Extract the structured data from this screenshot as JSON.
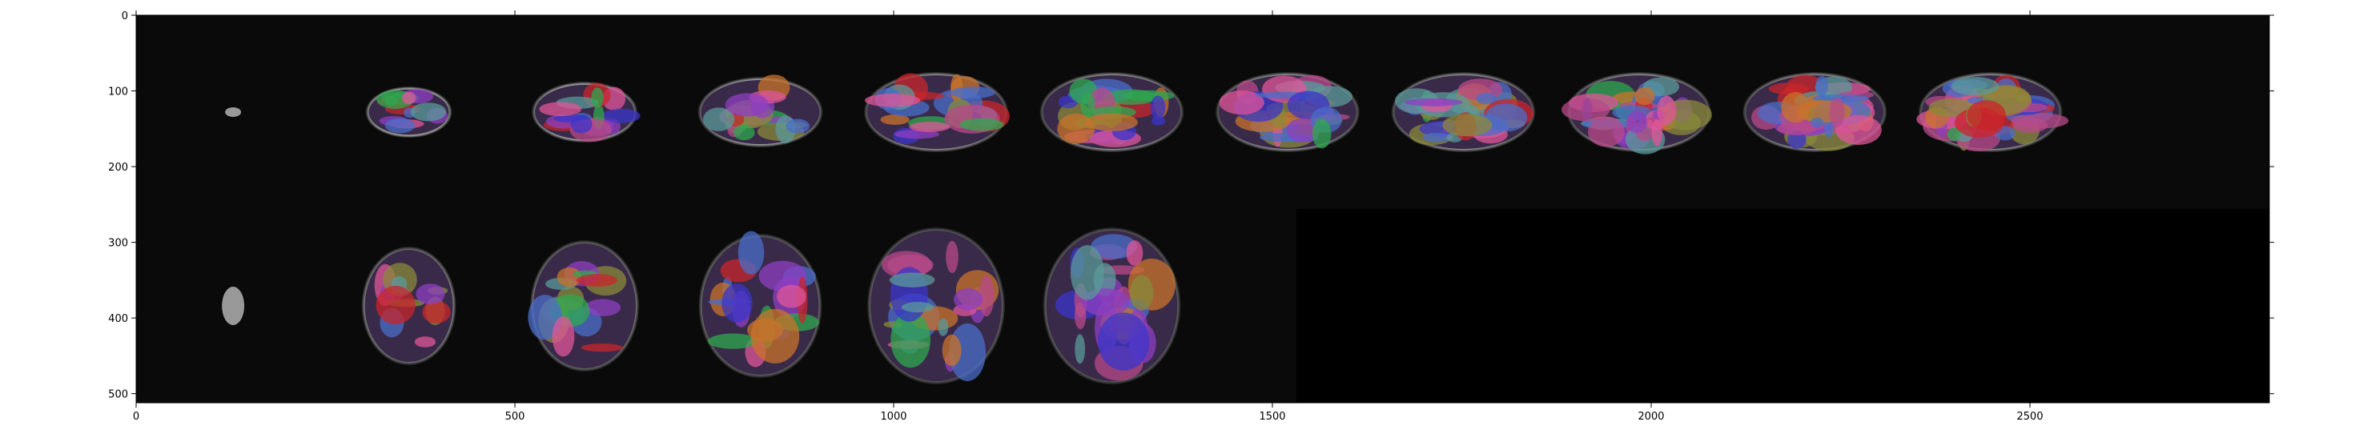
{
  "chart_data": {
    "type": "heatmap",
    "title": "",
    "xlabel": "",
    "ylabel": "",
    "xlim": [
      0,
      2816
    ],
    "ylim": [
      512,
      0
    ],
    "x_ticks": [
      0,
      500,
      1000,
      1500,
      2000,
      2500
    ],
    "y_ticks": [
      0,
      100,
      200,
      300,
      400,
      500
    ],
    "grid": false,
    "legend": "none",
    "tile_size": 256,
    "rows": [
      {
        "name": "",
        "view": "axial",
        "tiles": 11
      },
      {
        "name": "",
        "view": "sagittal",
        "tiles": 6
      }
    ]
  },
  "colors": {
    "background_tile": "#0a0a0a",
    "empty_area": "#000000",
    "label_palette": [
      "#e0559a",
      "#3b35c8",
      "#c8732a",
      "#8e3fc2",
      "#2fa84f",
      "#c8262b",
      "#8a8a3a",
      "#4a6ec8",
      "#b84a8a",
      "#5a9a9a"
    ]
  }
}
